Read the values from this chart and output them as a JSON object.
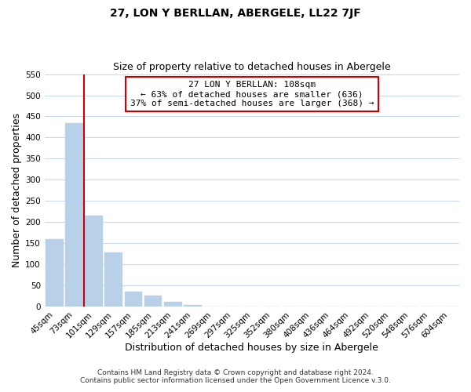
{
  "title": "27, LON Y BERLLAN, ABERGELE, LL22 7JF",
  "subtitle": "Size of property relative to detached houses in Abergele",
  "xlabel": "Distribution of detached houses by size in Abergele",
  "ylabel": "Number of detached properties",
  "bar_labels": [
    "45sqm",
    "73sqm",
    "101sqm",
    "129sqm",
    "157sqm",
    "185sqm",
    "213sqm",
    "241sqm",
    "269sqm",
    "297sqm",
    "325sqm",
    "352sqm",
    "380sqm",
    "408sqm",
    "436sqm",
    "464sqm",
    "492sqm",
    "520sqm",
    "548sqm",
    "576sqm",
    "604sqm"
  ],
  "bar_values": [
    160,
    435,
    215,
    128,
    35,
    27,
    12,
    3,
    1,
    0,
    0,
    0,
    1,
    0,
    0,
    0,
    0,
    0,
    0,
    0,
    1
  ],
  "bar_color": "#b8d0e8",
  "bar_edge_color": "#b8d0e8",
  "highlight_line_color": "#cc0000",
  "highlight_bar_index": 2,
  "ylim": [
    0,
    550
  ],
  "yticks": [
    0,
    50,
    100,
    150,
    200,
    250,
    300,
    350,
    400,
    450,
    500,
    550
  ],
  "annotation_text_line1": "27 LON Y BERLLAN: 108sqm",
  "annotation_text_line2": "← 63% of detached houses are smaller (636)",
  "annotation_text_line3": "37% of semi-detached houses are larger (368) →",
  "footnote1": "Contains HM Land Registry data © Crown copyright and database right 2024.",
  "footnote2": "Contains public sector information licensed under the Open Government Licence v.3.0.",
  "background_color": "#ffffff",
  "grid_color": "#c8d8ea",
  "title_fontsize": 10,
  "subtitle_fontsize": 9,
  "axis_label_fontsize": 9,
  "tick_fontsize": 7.5,
  "annotation_fontsize": 8,
  "annotation_box_edge_color": "#cc0000",
  "annotation_box_face_color": "#ffffff",
  "footnote_fontsize": 6.5
}
